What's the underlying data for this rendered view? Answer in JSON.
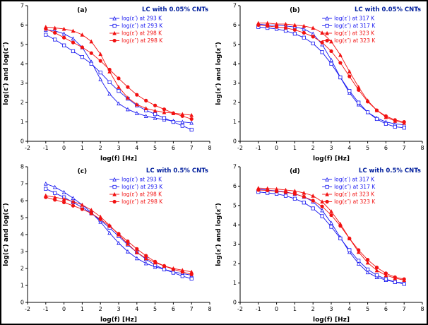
{
  "page": {
    "background": "#ffffff",
    "frame_color": "#000000"
  },
  "colors": {
    "series_blue": "#1414f0",
    "series_red": "#f21111",
    "title": "#001e9c",
    "axis": "#000000",
    "panel_label": "#000000"
  },
  "chart_data": [
    {
      "type": "line",
      "panel_label": "(a)",
      "title": "LC with 0.05% CNTs",
      "xlabel": "log(f) [Hz]",
      "ylabel": "log(ε′) and log(ε″)",
      "xlim": [
        -2,
        8
      ],
      "ylim": [
        0,
        7
      ],
      "xticks": [
        -2,
        -1,
        0,
        1,
        2,
        3,
        4,
        5,
        6,
        7,
        8
      ],
      "yticks": [
        0,
        1,
        2,
        3,
        4,
        5,
        6,
        7
      ],
      "grid": false,
      "legend_position": "top-right",
      "x": [
        -1,
        -0.5,
        0,
        0.5,
        1,
        1.5,
        2,
        2.5,
        3,
        3.5,
        4,
        4.5,
        5,
        5.5,
        6,
        6.5,
        7
      ],
      "series": [
        {
          "name": "log(ε′) at 293 K",
          "color": "blue",
          "marker": "triangle",
          "fill": "open",
          "values": [
            5.75,
            5.7,
            5.55,
            5.3,
            4.85,
            4.1,
            3.2,
            2.45,
            1.95,
            1.65,
            1.45,
            1.3,
            1.2,
            1.12,
            1.05,
            1.0,
            0.95
          ]
        },
        {
          "name": "log(ε″) at 293 K",
          "color": "blue",
          "marker": "square",
          "fill": "open",
          "values": [
            5.5,
            5.25,
            4.95,
            4.65,
            4.35,
            4.0,
            3.55,
            3.05,
            2.6,
            2.2,
            1.85,
            1.6,
            1.4,
            1.2,
            1.0,
            0.8,
            0.6
          ]
        },
        {
          "name": "log(ε′) at 298 K",
          "color": "red",
          "marker": "triangle",
          "fill": "filled",
          "values": [
            5.9,
            5.85,
            5.8,
            5.7,
            5.5,
            5.15,
            4.5,
            3.6,
            2.8,
            2.25,
            1.9,
            1.7,
            1.58,
            1.5,
            1.45,
            1.4,
            1.35
          ]
        },
        {
          "name": "log(ε″) at 298 K",
          "color": "red",
          "marker": "circle",
          "fill": "filled",
          "values": [
            5.8,
            5.6,
            5.35,
            5.1,
            4.85,
            4.55,
            4.15,
            3.7,
            3.25,
            2.8,
            2.4,
            2.1,
            1.85,
            1.65,
            1.45,
            1.3,
            1.15
          ]
        }
      ]
    },
    {
      "type": "line",
      "panel_label": "(b)",
      "title": "LC with 0.05% CNTs",
      "xlabel": "log(f) [Hz]",
      "ylabel": "log(ε′) and log(ε″)",
      "xlim": [
        -2,
        8
      ],
      "ylim": [
        0,
        7
      ],
      "xticks": [
        -2,
        -1,
        0,
        1,
        2,
        3,
        4,
        5,
        6,
        7,
        8
      ],
      "yticks": [
        0,
        1,
        2,
        3,
        4,
        5,
        6,
        7
      ],
      "grid": false,
      "legend_position": "top-right",
      "x": [
        -1,
        -0.5,
        0,
        0.5,
        1,
        1.5,
        2,
        2.5,
        3,
        3.5,
        4,
        4.5,
        5,
        5.5,
        6,
        6.5,
        7
      ],
      "series": [
        {
          "name": "log(ε′) at 317 K",
          "color": "blue",
          "marker": "triangle",
          "fill": "open",
          "values": [
            6.05,
            6.0,
            6.0,
            5.95,
            5.9,
            5.8,
            5.55,
            5.0,
            4.2,
            3.3,
            2.5,
            1.9,
            1.5,
            1.2,
            1.0,
            0.9,
            0.85
          ]
        },
        {
          "name": "log(ε″) at 317 K",
          "color": "blue",
          "marker": "square",
          "fill": "open",
          "values": [
            5.9,
            5.85,
            5.8,
            5.7,
            5.55,
            5.35,
            5.05,
            4.6,
            4.0,
            3.3,
            2.6,
            2.0,
            1.5,
            1.15,
            0.9,
            0.75,
            0.7
          ]
        },
        {
          "name": "log(ε′) at 323 K",
          "color": "red",
          "marker": "triangle",
          "fill": "filled",
          "values": [
            6.1,
            6.1,
            6.05,
            6.05,
            6.0,
            5.95,
            5.85,
            5.6,
            5.15,
            4.45,
            3.6,
            2.8,
            2.1,
            1.6,
            1.25,
            1.05,
            0.95
          ]
        },
        {
          "name": "log(ε″) at 323 K",
          "color": "red",
          "marker": "circle",
          "fill": "filled",
          "values": [
            6.0,
            5.95,
            5.9,
            5.85,
            5.75,
            5.6,
            5.4,
            5.1,
            4.65,
            4.05,
            3.35,
            2.65,
            2.05,
            1.6,
            1.3,
            1.1,
            1.0
          ]
        }
      ]
    },
    {
      "type": "line",
      "panel_label": "(c)",
      "title": "LC with 0.5% CNTs",
      "xlabel": "log(f) [Hz]",
      "ylabel": "log(ε′) and log(ε″)",
      "xlim": [
        -2,
        8
      ],
      "ylim": [
        0,
        8
      ],
      "xticks": [
        -2,
        -1,
        0,
        1,
        2,
        3,
        4,
        5,
        6,
        7,
        8
      ],
      "yticks": [
        0,
        1,
        2,
        3,
        4,
        5,
        6,
        7,
        8
      ],
      "grid": false,
      "legend_position": "top-right",
      "x": [
        -1,
        -0.5,
        0,
        0.5,
        1,
        1.5,
        2,
        2.5,
        3,
        3.5,
        4,
        4.5,
        5,
        5.5,
        6,
        6.5,
        7
      ],
      "series": [
        {
          "name": "log(ε′) at 293 K",
          "color": "blue",
          "marker": "triangle",
          "fill": "open",
          "values": [
            7.0,
            6.8,
            6.5,
            6.15,
            5.75,
            5.3,
            4.75,
            4.1,
            3.5,
            3.0,
            2.6,
            2.3,
            2.1,
            1.95,
            1.8,
            1.7,
            1.6
          ]
        },
        {
          "name": "log(ε″) at 293 K",
          "color": "blue",
          "marker": "square",
          "fill": "open",
          "values": [
            6.7,
            6.45,
            6.2,
            5.9,
            5.6,
            5.25,
            4.85,
            4.4,
            3.9,
            3.4,
            2.95,
            2.55,
            2.2,
            1.95,
            1.75,
            1.55,
            1.4
          ]
        },
        {
          "name": "log(ε′) at 298 K",
          "color": "red",
          "marker": "triangle",
          "fill": "filled",
          "values": [
            6.3,
            6.2,
            6.1,
            5.95,
            5.75,
            5.45,
            5.05,
            4.55,
            4.0,
            3.45,
            2.95,
            2.6,
            2.35,
            2.15,
            2.0,
            1.9,
            1.8
          ]
        },
        {
          "name": "log(ε″) at 298 K",
          "color": "red",
          "marker": "circle",
          "fill": "filled",
          "values": [
            6.2,
            6.05,
            5.9,
            5.7,
            5.5,
            5.25,
            4.9,
            4.5,
            4.05,
            3.6,
            3.15,
            2.75,
            2.4,
            2.15,
            1.95,
            1.8,
            1.65
          ]
        }
      ]
    },
    {
      "type": "line",
      "panel_label": "(d)",
      "title": "LC with 0.5% CNTs",
      "xlabel": "log(f) [Hz]",
      "ylabel": "log(ε′) and log(ε″)",
      "xlim": [
        -2,
        8
      ],
      "ylim": [
        0,
        7
      ],
      "xticks": [
        -2,
        -1,
        0,
        1,
        2,
        3,
        4,
        5,
        6,
        7,
        8
      ],
      "yticks": [
        0,
        1,
        2,
        3,
        4,
        5,
        6,
        7
      ],
      "grid": false,
      "legend_position": "top-right",
      "x": [
        -1,
        -0.5,
        0,
        0.5,
        1,
        1.5,
        2,
        2.5,
        3,
        3.5,
        4,
        4.5,
        5,
        5.5,
        6,
        6.5,
        7
      ],
      "series": [
        {
          "name": "log(ε′) at 317 K",
          "color": "blue",
          "marker": "triangle",
          "fill": "open",
          "values": [
            5.85,
            5.8,
            5.75,
            5.7,
            5.6,
            5.45,
            5.2,
            4.75,
            4.1,
            3.35,
            2.6,
            2.0,
            1.55,
            1.3,
            1.15,
            1.05,
            1.0
          ]
        },
        {
          "name": "log(ε″) at 317 K",
          "color": "blue",
          "marker": "square",
          "fill": "open",
          "values": [
            5.7,
            5.65,
            5.6,
            5.5,
            5.35,
            5.15,
            4.85,
            4.45,
            3.9,
            3.3,
            2.7,
            2.15,
            1.7,
            1.4,
            1.2,
            1.05,
            0.95
          ]
        },
        {
          "name": "log(ε′) at 323 K",
          "color": "red",
          "marker": "triangle",
          "fill": "filled",
          "values": [
            5.9,
            5.88,
            5.85,
            5.8,
            5.75,
            5.65,
            5.5,
            5.2,
            4.7,
            4.05,
            3.3,
            2.6,
            2.05,
            1.65,
            1.4,
            1.25,
            1.15
          ]
        },
        {
          "name": "log(ε″) at 323 K",
          "color": "red",
          "marker": "circle",
          "fill": "filled",
          "values": [
            5.8,
            5.78,
            5.73,
            5.68,
            5.6,
            5.45,
            5.25,
            4.95,
            4.5,
            3.95,
            3.3,
            2.7,
            2.2,
            1.8,
            1.5,
            1.3,
            1.2
          ]
        }
      ]
    }
  ]
}
